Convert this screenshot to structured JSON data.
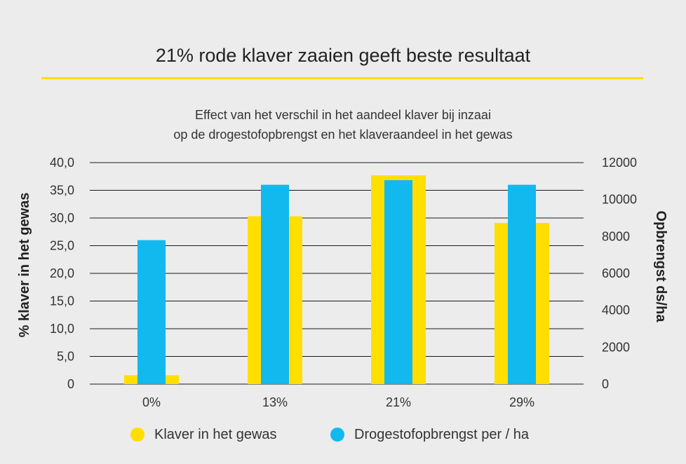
{
  "colors": {
    "accent": "#ffde00",
    "series1": "#ffde00",
    "series2": "#12b9ee",
    "grid": "#1a1a1a"
  },
  "chart_data": {
    "type": "bar",
    "title": "21% rode klaver zaaien geeft beste resultaat",
    "subtitle_lines": [
      "Effect van het verschil in het aandeel klaver bij inzaai",
      "op de drogestofopbrengst en het klaveraandeel in het gewas"
    ],
    "categories": [
      "0%",
      "13%",
      "21%",
      "29%"
    ],
    "series": [
      {
        "name": "Klaver in het gewas",
        "axis": "left",
        "values": [
          1.6,
          30.3,
          37.7,
          29.1
        ]
      },
      {
        "name": "Drogestofopbrengst per / ha",
        "axis": "right",
        "values": [
          7800,
          10800,
          11050,
          10800
        ]
      }
    ],
    "ylabel_left": "% klaver in het gewas",
    "ylabel_right": "Opbrengst ds/ha",
    "ylim_left": [
      0,
      40
    ],
    "ylim_right": [
      0,
      12000
    ],
    "yticks_left": [
      "0",
      "5,0",
      "10,0",
      "15,0",
      "20,0",
      "25,0",
      "30,0",
      "35,0",
      "40,0"
    ],
    "yticks_right": [
      "0",
      "2000",
      "4000",
      "6000",
      "8000",
      "10000",
      "12000"
    ],
    "grid": true,
    "legend_position": "bottom"
  }
}
